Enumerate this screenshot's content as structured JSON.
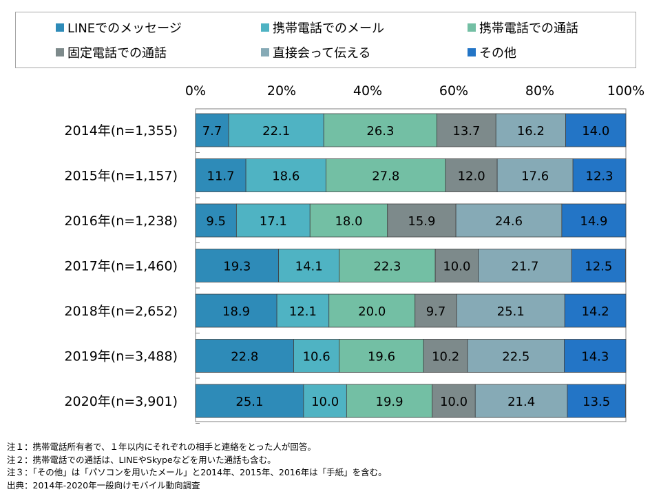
{
  "chart_data": {
    "type": "bar",
    "orientation": "horizontal",
    "stacked": "percent",
    "categories": [
      "2014年(n=1,355)",
      "2015年(n=1,157)",
      "2016年(n=1,238)",
      "2017年(n=1,460)",
      "2018年(n=2,652)",
      "2019年(n=3,488)",
      "2020年(n=3,901)"
    ],
    "series": [
      {
        "name": "LINEでのメッセージ",
        "color": "#2e8bb8",
        "values": [
          7.7,
          11.7,
          9.5,
          19.3,
          18.9,
          22.8,
          25.1
        ]
      },
      {
        "name": "携帯電話でのメール",
        "color": "#4fb3c3",
        "values": [
          22.1,
          18.6,
          17.1,
          14.1,
          12.1,
          10.6,
          10.0
        ]
      },
      {
        "name": "携帯電話での通話",
        "color": "#73bfa4",
        "values": [
          26.3,
          27.8,
          18.0,
          22.3,
          20.0,
          19.6,
          19.9
        ]
      },
      {
        "name": "固定電話での通話",
        "color": "#7d8a8b",
        "values": [
          13.7,
          12.0,
          15.9,
          10.0,
          9.7,
          10.2,
          10.0
        ]
      },
      {
        "name": "直接会って伝える",
        "color": "#86aab6",
        "values": [
          16.2,
          17.6,
          24.6,
          21.7,
          25.1,
          22.5,
          21.4
        ]
      },
      {
        "name": "その他",
        "color": "#2375c6",
        "values": [
          14.0,
          12.3,
          14.9,
          12.5,
          14.2,
          14.3,
          13.5
        ]
      }
    ],
    "value_labels": [
      [
        "7.7",
        "22.1",
        "26.3",
        "13.7",
        "16.2",
        "14.0"
      ],
      [
        "11.7",
        "18.6",
        "27.8",
        "12.0",
        "17.6",
        "12.3"
      ],
      [
        "9.5",
        "17.1",
        "18.0",
        "15.9",
        "24.6",
        "14.9"
      ],
      [
        "19.3",
        "14.1",
        "22.3",
        "10.0",
        "21.7",
        "12.5"
      ],
      [
        "18.9",
        "12.1",
        "20.0",
        "9.7",
        "25.1",
        "14.2"
      ],
      [
        "22.8",
        "10.6",
        "19.6",
        "10.2",
        "22.5",
        "14.3"
      ],
      [
        "25.1",
        "10.0",
        "19.9",
        "10.0",
        "21.4",
        "13.5"
      ]
    ],
    "xlim": [
      0,
      100
    ],
    "x_ticks": [
      "0%",
      "20%",
      "40%",
      "60%",
      "80%",
      "100%"
    ],
    "legend_position": "top",
    "grid": false
  },
  "notes": [
    "注１：携帯電話所有者で、１年以内にそれぞれの相手と連絡をとった人が回答。",
    "注２：携帯電話での通話は、LINEやSkypeなどを用いた通話も含む。",
    "注３：「その他」は「パソコンを用いたメール」と2014年、2015年、2016年は「手紙」を含む。",
    "出典：2014年-2020年一般向けモバイル動向調査"
  ]
}
